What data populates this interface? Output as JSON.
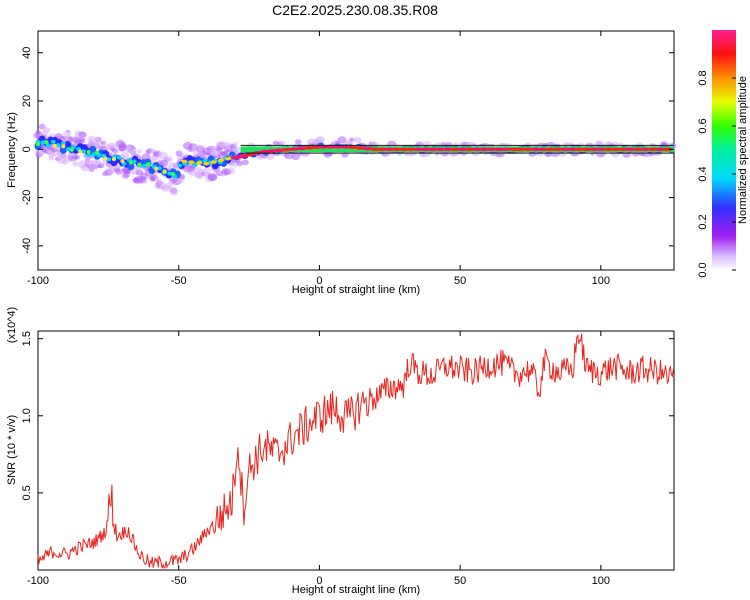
{
  "title": "C2E2.2025.230.08.35.R08",
  "chart_data": [
    {
      "type": "heatmap",
      "xlabel": "Height of straight line (km)",
      "ylabel": "Frequency (Hz)",
      "xlim": [
        -100,
        126
      ],
      "ylim": [
        -50,
        49
      ],
      "xticks": [
        -100,
        -50,
        0,
        50,
        100
      ],
      "yticks": [
        -40,
        -20,
        0,
        20,
        40
      ],
      "colorbar": {
        "label": "Normalized spectral amplitude",
        "range": [
          0,
          1
        ],
        "ticks": [
          "0.0",
          "0.2",
          "0.4",
          "0.6",
          "0.8"
        ],
        "colors": [
          "#ffffff",
          "#a020f0",
          "#3030ff",
          "#00e0ff",
          "#00ff40",
          "#ffff00",
          "#ff8000",
          "#ff0000",
          "#ff2080"
        ]
      },
      "ridge": {
        "description_points": [
          {
            "x": -100,
            "y": 3
          },
          {
            "x": -90,
            "y": 1
          },
          {
            "x": -80,
            "y": -2
          },
          {
            "x": -70,
            "y": -5
          },
          {
            "x": -60,
            "y": -7
          },
          {
            "x": -52,
            "y": -11
          },
          {
            "x": -48,
            "y": -5
          },
          {
            "x": -40,
            "y": -6
          },
          {
            "x": -33,
            "y": -4
          },
          {
            "x": -28,
            "y": -3
          },
          {
            "x": -20,
            "y": -1
          },
          {
            "x": -10,
            "y": 0
          },
          {
            "x": 0,
            "y": 1
          },
          {
            "x": 10,
            "y": 1
          },
          {
            "x": 20,
            "y": 0
          },
          {
            "x": 60,
            "y": 0
          },
          {
            "x": 100,
            "y": 0
          },
          {
            "x": 126,
            "y": 0
          }
        ]
      }
    },
    {
      "type": "line",
      "xlabel": "Height of straight line (km)",
      "ylabel": "SNR (10 * v/v)",
      "multiplier": "(x10^4)",
      "xlim": [
        -100,
        126
      ],
      "ylim": [
        0,
        15500
      ],
      "xticks": [
        -100,
        -50,
        0,
        50,
        100
      ],
      "yticks": [
        {
          "v": 5000,
          "label": "0.5"
        },
        {
          "v": 10000,
          "label": "1.0"
        },
        {
          "v": 15000,
          "label": "1.5"
        }
      ],
      "color": "#e8251e",
      "series": [
        {
          "x": [
            -100,
            -95,
            -90,
            -85,
            -80,
            -76,
            -74,
            -72,
            -68,
            -64,
            -60,
            -55,
            -50,
            -45,
            -40,
            -35,
            -31,
            -29,
            -27,
            -25,
            -20,
            -15,
            -10,
            -5,
            0,
            5,
            10,
            15,
            20,
            25,
            30,
            32,
            35,
            40,
            45,
            50,
            55,
            60,
            65,
            70,
            75,
            78,
            80,
            85,
            90,
            92,
            95,
            100,
            105,
            110,
            115,
            120,
            124,
            126
          ],
          "y": [
            500,
            1200,
            1000,
            1500,
            1800,
            2500,
            4800,
            2200,
            2600,
            1000,
            400,
            500,
            600,
            1300,
            2500,
            3500,
            4500,
            8400,
            4000,
            6500,
            8000,
            7500,
            8500,
            9300,
            10000,
            10500,
            9800,
            10800,
            11200,
            11800,
            12000,
            13500,
            12800,
            12600,
            13200,
            13000,
            12800,
            13300,
            13400,
            12700,
            13000,
            11600,
            13500,
            12800,
            13000,
            15500,
            13000,
            12800,
            13200,
            12800,
            13000,
            12900,
            12500,
            12600
          ]
        }
      ]
    }
  ]
}
